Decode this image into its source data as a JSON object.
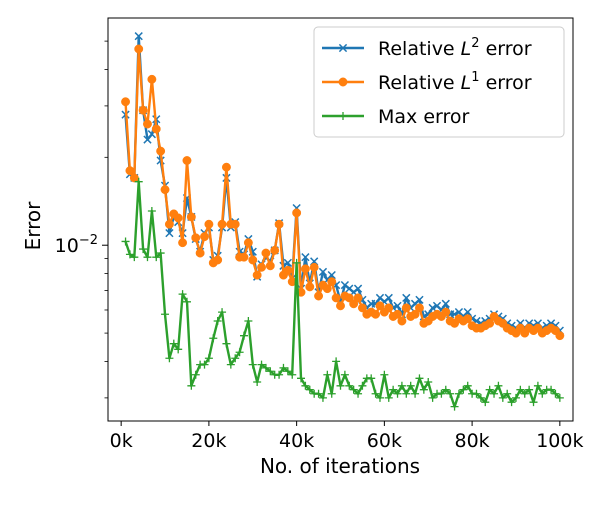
{
  "chart_data": {
    "type": "line",
    "title": "",
    "xlabel": "No. of iterations",
    "ylabel": "Error",
    "x_ticks": [
      "0k",
      "20k",
      "40k",
      "60k",
      "80k",
      "100k"
    ],
    "y_tick_label": "10^{-2}",
    "yscale": "log",
    "xlim": [
      -3000,
      103000
    ],
    "ylim": [
      0.0025,
      0.06
    ],
    "legend_position": "top-right",
    "grid": false,
    "x": [
      1000,
      2000,
      3000,
      4000,
      5000,
      6000,
      7000,
      8000,
      9000,
      10000,
      11000,
      12000,
      13000,
      14000,
      15000,
      16000,
      17000,
      18000,
      19000,
      20000,
      21000,
      22000,
      23000,
      24000,
      25000,
      26000,
      27000,
      28000,
      29000,
      30000,
      31000,
      32000,
      33000,
      34000,
      35000,
      36000,
      37000,
      38000,
      39000,
      40000,
      41000,
      42000,
      43000,
      44000,
      45000,
      46000,
      47000,
      48000,
      49000,
      50000,
      51000,
      52000,
      53000,
      54000,
      55000,
      56000,
      57000,
      58000,
      59000,
      60000,
      61000,
      62000,
      63000,
      64000,
      65000,
      66000,
      67000,
      68000,
      69000,
      70000,
      71000,
      72000,
      73000,
      74000,
      75000,
      76000,
      77000,
      78000,
      79000,
      80000,
      81000,
      82000,
      83000,
      84000,
      85000,
      86000,
      87000,
      88000,
      89000,
      90000,
      91000,
      92000,
      93000,
      94000,
      95000,
      96000,
      97000,
      98000,
      99000,
      100000
    ],
    "series": [
      {
        "name": "Relative $L^2$ error",
        "legend_label": "Relative",
        "legend_math": "L",
        "legend_sup": "2",
        "legend_suffix": "error",
        "color": "#1f77b4",
        "marker": "x",
        "values": [
          0.028,
          0.0175,
          0.017,
          0.052,
          0.029,
          0.023,
          0.024,
          0.027,
          0.0195,
          0.016,
          0.011,
          0.0125,
          0.012,
          0.011,
          0.0145,
          0.0125,
          0.0105,
          0.0095,
          0.011,
          0.0115,
          0.0089,
          0.0092,
          0.0115,
          0.017,
          0.0115,
          0.012,
          0.0095,
          0.0093,
          0.0105,
          0.0095,
          0.0078,
          0.0086,
          0.0091,
          0.0088,
          0.0096,
          0.0119,
          0.0085,
          0.0087,
          0.0077,
          0.0134,
          0.0071,
          0.0091,
          0.0074,
          0.0088,
          0.0069,
          0.0081,
          0.0076,
          0.0079,
          0.0073,
          0.0064,
          0.0073,
          0.0071,
          0.0069,
          0.0071,
          0.0065,
          0.0061,
          0.0063,
          0.0063,
          0.0066,
          0.0064,
          0.0066,
          0.0061,
          0.0062,
          0.0058,
          0.0066,
          0.0061,
          0.0063,
          0.0065,
          0.0057,
          0.0058,
          0.0061,
          0.0062,
          0.006,
          0.0063,
          0.0058,
          0.0058,
          0.0059,
          0.0057,
          0.0059,
          0.0056,
          0.0055,
          0.0054,
          0.0055,
          0.0056,
          0.0058,
          0.0057,
          0.0056,
          0.0054,
          0.0053,
          0.0052,
          0.0054,
          0.0052,
          0.0054,
          0.0053,
          0.0054,
          0.0052,
          0.0053,
          0.0054,
          0.0053,
          0.0051
        ]
      },
      {
        "name": "Relative $L^1$ error",
        "legend_label": "Relative",
        "legend_math": "L",
        "legend_sup": "1",
        "legend_suffix": "error",
        "color": "#ff7f0e",
        "marker": "o",
        "values": [
          0.031,
          0.018,
          0.017,
          0.047,
          0.029,
          0.026,
          0.037,
          0.025,
          0.021,
          0.0155,
          0.0118,
          0.0128,
          0.0124,
          0.0102,
          0.0195,
          0.0125,
          0.0106,
          0.0094,
          0.0107,
          0.0118,
          0.0087,
          0.0089,
          0.0118,
          0.0185,
          0.0118,
          0.0118,
          0.0091,
          0.0091,
          0.0102,
          0.0089,
          0.0079,
          0.0084,
          0.0094,
          0.0085,
          0.0096,
          0.0118,
          0.0079,
          0.0082,
          0.0075,
          0.0129,
          0.0069,
          0.0083,
          0.0072,
          0.0084,
          0.0067,
          0.0073,
          0.0071,
          0.0075,
          0.0066,
          0.0062,
          0.0067,
          0.0066,
          0.0063,
          0.0066,
          0.0061,
          0.0058,
          0.0059,
          0.0058,
          0.0062,
          0.0059,
          0.0061,
          0.0057,
          0.0058,
          0.0055,
          0.0061,
          0.0057,
          0.0058,
          0.0061,
          0.0054,
          0.0055,
          0.0057,
          0.0058,
          0.0057,
          0.0059,
          0.0055,
          0.0054,
          0.0056,
          0.0055,
          0.0056,
          0.0053,
          0.0052,
          0.0052,
          0.0053,
          0.0054,
          0.0057,
          0.0055,
          0.0054,
          0.0052,
          0.0051,
          0.005,
          0.0052,
          0.005,
          0.0052,
          0.0051,
          0.0052,
          0.005,
          0.0051,
          0.0052,
          0.0051,
          0.0049
        ]
      },
      {
        "name": "Max error",
        "legend_label": "Max error",
        "legend_math": "",
        "legend_sup": "",
        "legend_suffix": "",
        "color": "#2ca02c",
        "marker": "+",
        "values": [
          0.0103,
          0.0093,
          0.0091,
          0.0165,
          0.0097,
          0.0091,
          0.0131,
          0.0091,
          0.0094,
          0.0058,
          0.0041,
          0.0046,
          0.0044,
          0.0068,
          0.0064,
          0.0033,
          0.0036,
          0.0039,
          0.0039,
          0.0041,
          0.0048,
          0.0055,
          0.0059,
          0.0046,
          0.0039,
          0.0041,
          0.0043,
          0.0049,
          0.0055,
          0.0039,
          0.0034,
          0.0039,
          0.0038,
          0.0037,
          0.0036,
          0.0036,
          0.0038,
          0.0037,
          0.0036,
          0.0087,
          0.0035,
          0.0033,
          0.0032,
          0.0031,
          0.0031,
          0.003,
          0.0036,
          0.0031,
          0.004,
          0.0033,
          0.0036,
          0.0033,
          0.0032,
          0.0031,
          0.0033,
          0.0035,
          0.0035,
          0.0031,
          0.003,
          0.0036,
          0.003,
          0.0032,
          0.0031,
          0.0033,
          0.0031,
          0.0033,
          0.0031,
          0.0035,
          0.0032,
          0.0034,
          0.003,
          0.0031,
          0.0031,
          0.0032,
          0.0031,
          0.0028,
          0.0031,
          0.0032,
          0.0033,
          0.0031,
          0.0031,
          0.003,
          0.0029,
          0.0032,
          0.0031,
          0.0033,
          0.003,
          0.0031,
          0.0029,
          0.003,
          0.0032,
          0.0031,
          0.0032,
          0.0029,
          0.0033,
          0.0031,
          0.0032,
          0.0032,
          0.0031,
          0.003
        ]
      }
    ]
  }
}
